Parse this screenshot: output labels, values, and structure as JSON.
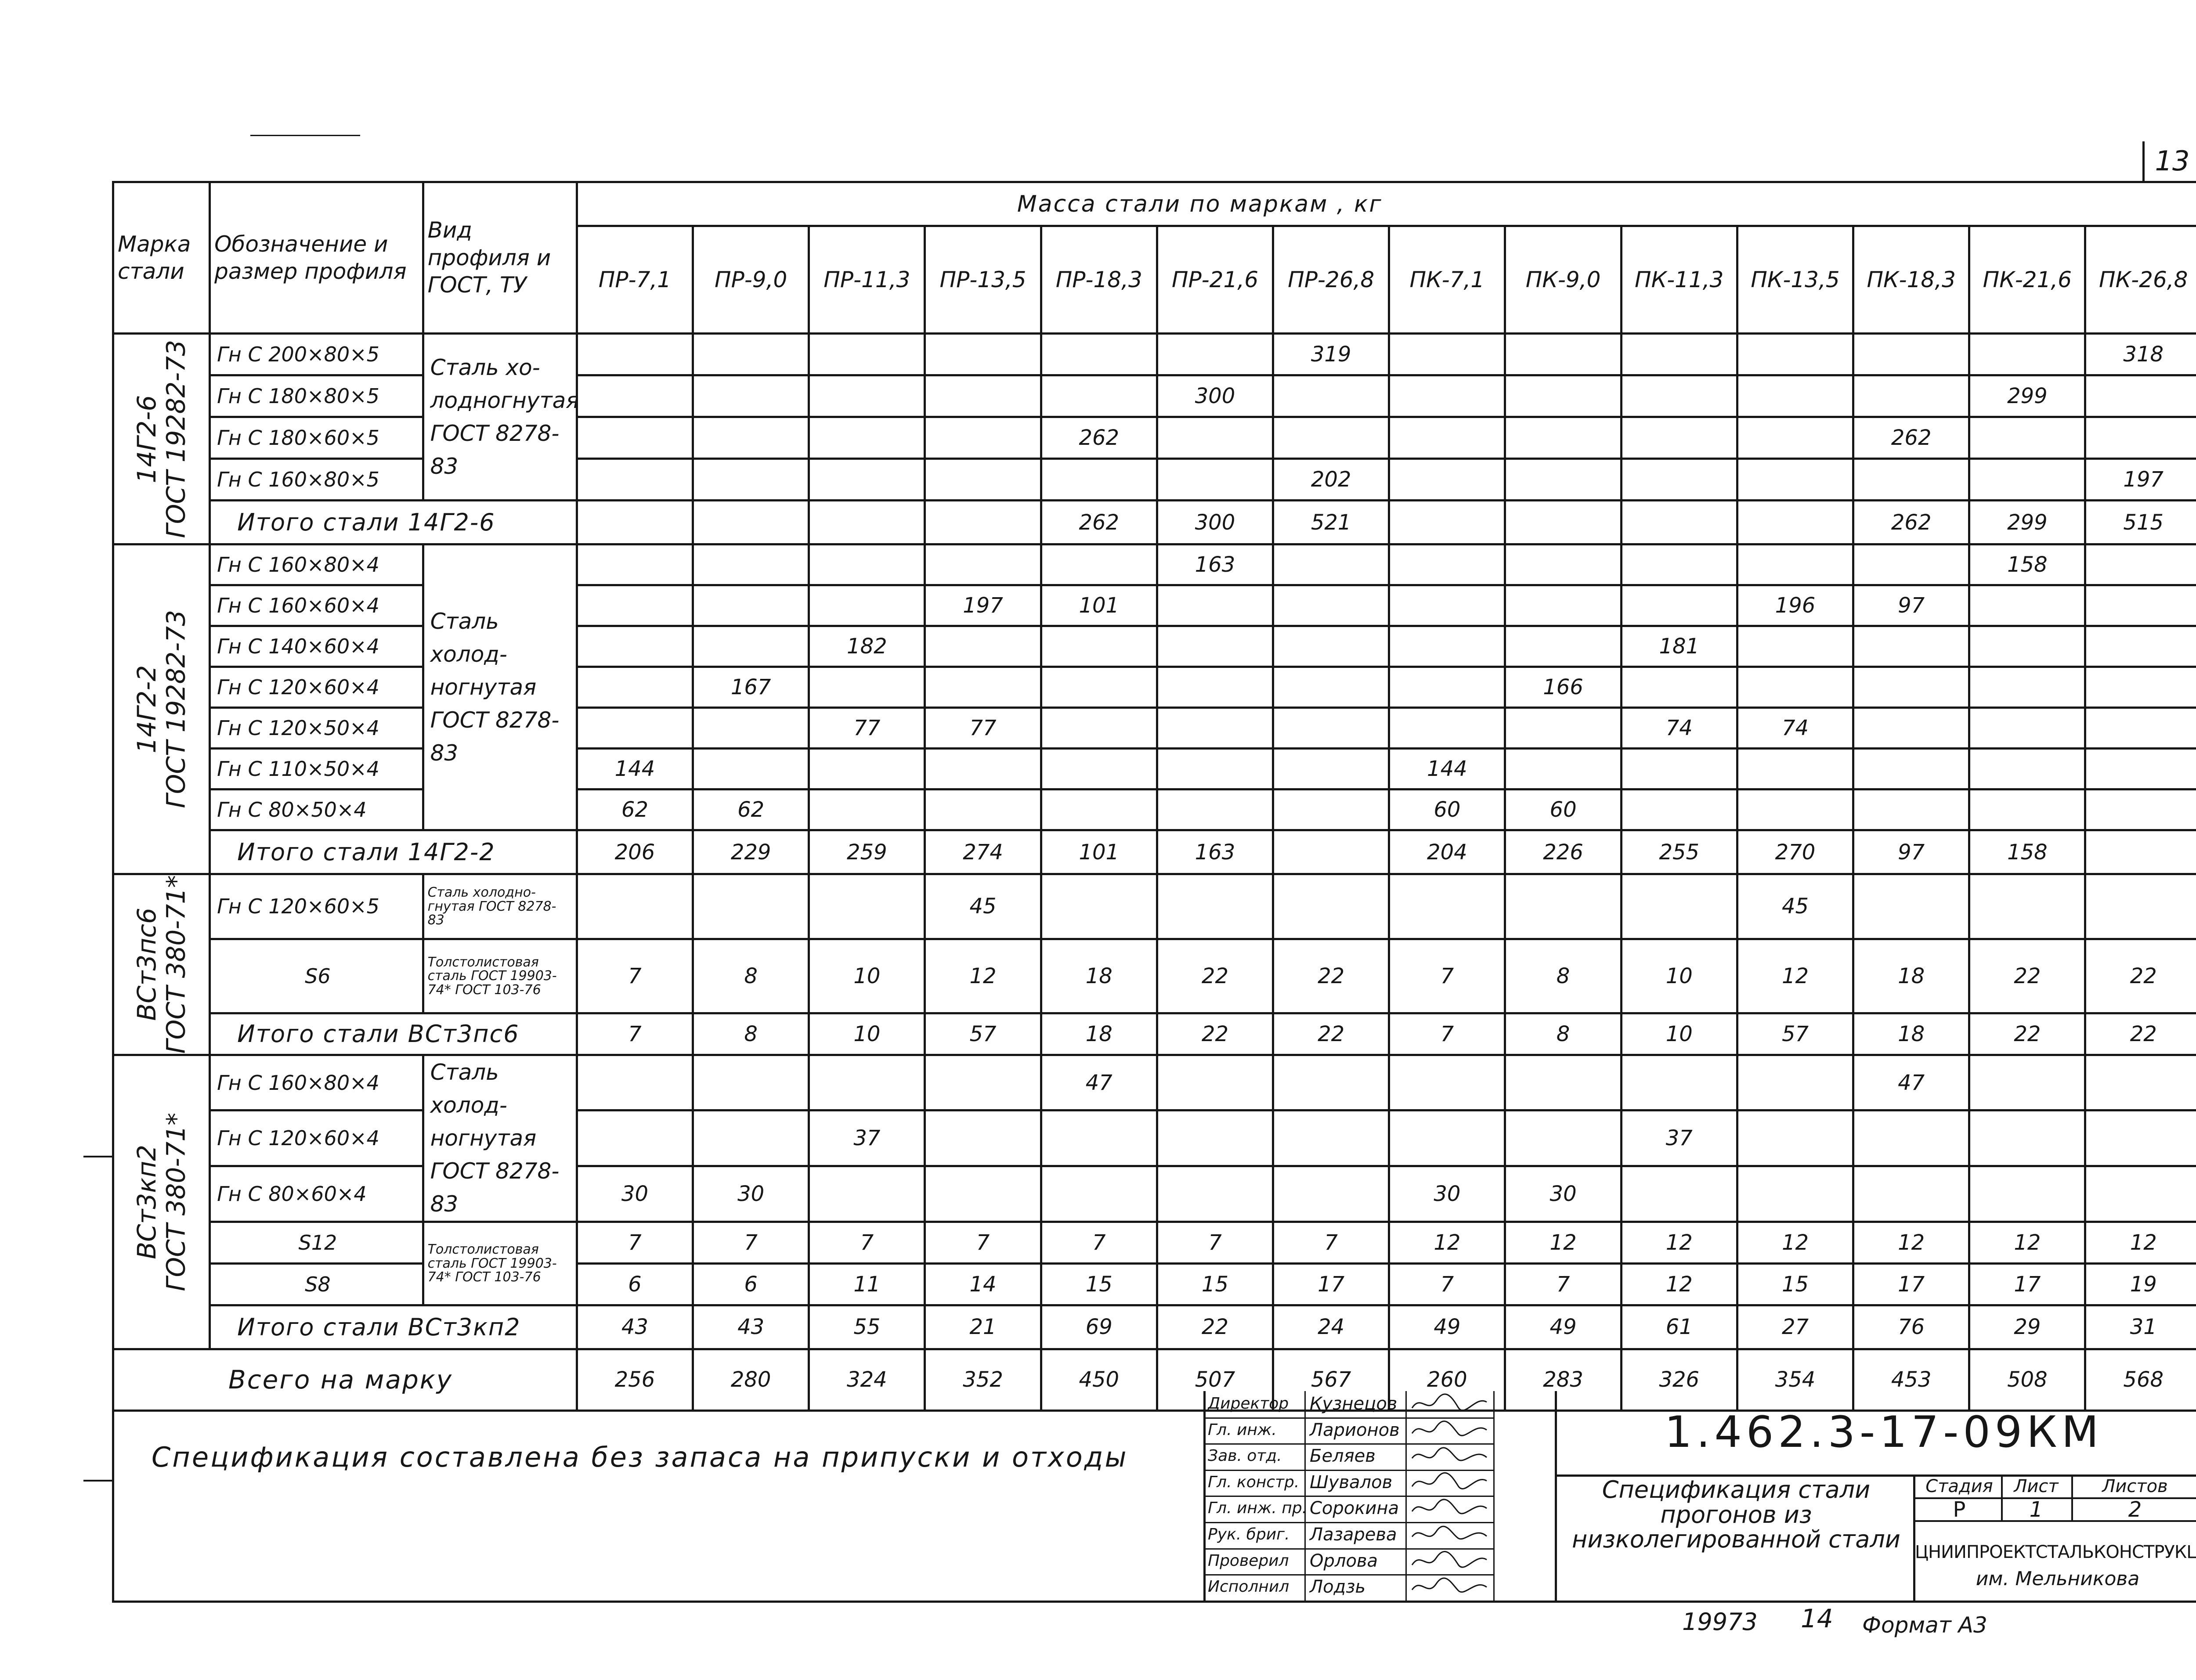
{
  "sheet_number": "13",
  "header": {
    "steel_grade": "Марка стали",
    "profile": "Обозначение и размер профиля",
    "type_gost": "Вид профиля и ГОСТ, ТУ",
    "mass_title": "Масса   стали   по  маркам  , кг",
    "marks": [
      "ПР-7,1",
      "ПР-9,0",
      "ПР-11,3",
      "ПР-13,5",
      "ПР-18,3",
      "ПР-21,6",
      "ПР-26,8",
      "ПК-7,1",
      "ПК-9,0",
      "ПК-11,3",
      "ПК-13,5",
      "ПК-18,3",
      "ПК-21,6",
      "ПК-26,8"
    ]
  },
  "groups": [
    {
      "grade": "14Г2-6",
      "grade_gost": "ГОСТ 19282-73",
      "gost": "Сталь хо- лодногнутая ГОСТ 8278-83",
      "rows": [
        {
          "profile": "Гн С 200×80×5",
          "values": [
            "",
            "",
            "",
            "",
            "",
            "",
            "319",
            "",
            "",
            "",
            "",
            "",
            "",
            "318"
          ]
        },
        {
          "profile": "Гн С 180×80×5",
          "values": [
            "",
            "",
            "",
            "",
            "",
            "300",
            "",
            "",
            "",
            "",
            "",
            "",
            "299",
            ""
          ]
        },
        {
          "profile": "Гн С 180×60×5",
          "values": [
            "",
            "",
            "",
            "",
            "262",
            "",
            "",
            "",
            "",
            "",
            "",
            "262",
            "",
            ""
          ]
        },
        {
          "profile": "Гн С 160×80×5",
          "values": [
            "",
            "",
            "",
            "",
            "",
            "",
            "202",
            "",
            "",
            "",
            "",
            "",
            "",
            "197"
          ]
        }
      ],
      "total_label": "Итого стали 14Г2-6",
      "totals": [
        "",
        "",
        "",
        "",
        "262",
        "300",
        "521",
        "",
        "",
        "",
        "",
        "262",
        "299",
        "515"
      ]
    },
    {
      "grade": "14Г2-2",
      "grade_gost": "ГОСТ 19282-73",
      "gost": "Сталь холод- ногнутая ГОСТ 8278-83",
      "rows": [
        {
          "profile": "Гн С 160×80×4",
          "values": [
            "",
            "",
            "",
            "",
            "",
            "163",
            "",
            "",
            "",
            "",
            "",
            "",
            "158",
            ""
          ]
        },
        {
          "profile": "Гн С 160×60×4",
          "values": [
            "",
            "",
            "",
            "197",
            "101",
            "",
            "",
            "",
            "",
            "",
            "196",
            "97",
            "",
            ""
          ]
        },
        {
          "profile": "Гн С 140×60×4",
          "values": [
            "",
            "",
            "182",
            "",
            "",
            "",
            "",
            "",
            "",
            "181",
            "",
            "",
            "",
            ""
          ]
        },
        {
          "profile": "Гн С 120×60×4",
          "values": [
            "",
            "167",
            "",
            "",
            "",
            "",
            "",
            "",
            "166",
            "",
            "",
            "",
            "",
            ""
          ]
        },
        {
          "profile": "Гн С 120×50×4",
          "values": [
            "",
            "",
            "77",
            "77",
            "",
            "",
            "",
            "",
            "",
            "74",
            "74",
            "",
            "",
            ""
          ]
        },
        {
          "profile": "Гн С 110×50×4",
          "values": [
            "144",
            "",
            "",
            "",
            "",
            "",
            "",
            "144",
            "",
            "",
            "",
            "",
            "",
            ""
          ]
        },
        {
          "profile": "Гн С 80×50×4",
          "values": [
            "62",
            "62",
            "",
            "",
            "",
            "",
            "",
            "60",
            "60",
            "",
            "",
            "",
            "",
            ""
          ]
        }
      ],
      "total_label": "Итого стали 14Г2-2",
      "totals": [
        "206",
        "229",
        "259",
        "274",
        "101",
        "163",
        "",
        "204",
        "226",
        "255",
        "270",
        "97",
        "158",
        ""
      ]
    },
    {
      "grade": "ВСт3пс6",
      "grade_gost": "ГОСТ 380-71*",
      "rows": [
        {
          "profile": "Гн С 120×60×5",
          "gost": "Сталь холодно- гнутая ГОСТ 8278-83",
          "values": [
            "",
            "",
            "",
            "45",
            "",
            "",
            "",
            "",
            "",
            "",
            "45",
            "",
            "",
            ""
          ]
        },
        {
          "profile": "S6",
          "gost": "Толстолистовая сталь ГОСТ 19903-74* ГОСТ 103-76",
          "values": [
            "7",
            "8",
            "10",
            "12",
            "18",
            "22",
            "22",
            "7",
            "8",
            "10",
            "12",
            "18",
            "22",
            "22"
          ]
        }
      ],
      "total_label": "Итого стали ВСт3пс6",
      "totals": [
        "7",
        "8",
        "10",
        "57",
        "18",
        "22",
        "22",
        "7",
        "8",
        "10",
        "57",
        "18",
        "22",
        "22"
      ]
    },
    {
      "grade": "ВСт3кп2",
      "grade_gost": "ГОСТ 380-71*",
      "gost_cold": "Сталь холод- ногнутая ГОСТ 8278-83",
      "gost_plate": "Толстолистовая сталь ГОСТ 19903-74* ГОСТ 103-76",
      "rows": [
        {
          "profile": "Гн С 160×80×4",
          "values": [
            "",
            "",
            "",
            "",
            "47",
            "",
            "",
            "",
            "",
            "",
            "",
            "47",
            "",
            ""
          ]
        },
        {
          "profile": "Гн С 120×60×4",
          "values": [
            "",
            "",
            "37",
            "",
            "",
            "",
            "",
            "",
            "",
            "37",
            "",
            "",
            "",
            ""
          ]
        },
        {
          "profile": "Гн С 80×60×4",
          "values": [
            "30",
            "30",
            "",
            "",
            "",
            "",
            "",
            "30",
            "30",
            "",
            "",
            "",
            "",
            ""
          ]
        },
        {
          "profile": "S12",
          "values": [
            "7",
            "7",
            "7",
            "7",
            "7",
            "7",
            "7",
            "12",
            "12",
            "12",
            "12",
            "12",
            "12",
            "12"
          ]
        },
        {
          "profile": "S8",
          "values": [
            "6",
            "6",
            "11",
            "14",
            "15",
            "15",
            "17",
            "7",
            "7",
            "12",
            "15",
            "17",
            "17",
            "19"
          ]
        }
      ],
      "total_label": "Итого стали ВСт3кп2",
      "totals": [
        "43",
        "43",
        "55",
        "21",
        "69",
        "22",
        "24",
        "49",
        "49",
        "61",
        "27",
        "76",
        "29",
        "31"
      ]
    }
  ],
  "grand_total_label": "Всего на марку",
  "grand_total": [
    "256",
    "280",
    "324",
    "352",
    "450",
    "507",
    "567",
    "260",
    "283",
    "326",
    "354",
    "453",
    "508",
    "568"
  ],
  "note": "Спецификация   составлена   без  запаса  на  припуски  и  отходы",
  "signatures": [
    {
      "role": "Директор",
      "name": "Кузнецов"
    },
    {
      "role": "Гл. инж.",
      "name": "Ларионов"
    },
    {
      "role": "Зав. отд.",
      "name": "Беляев"
    },
    {
      "role": "Гл. констр.",
      "name": "Шувалов"
    },
    {
      "role": "Гл. инж. пр.",
      "name": "Сорокина"
    },
    {
      "role": "Рук. бриг.",
      "name": "Лазарева"
    },
    {
      "role": "Проверил",
      "name": "Орлова"
    },
    {
      "role": "Исполнил",
      "name": "Лодзь"
    }
  ],
  "doc_code": "1.462.3-17-09КМ",
  "doc_title": "Спецификация стали прогонов из низколегированной стали",
  "stage_label": "Стадия",
  "sheet_label": "Лист",
  "sheets_label": "Листов",
  "stage": "Р",
  "sheet": "1",
  "sheets": "2",
  "org": "ЦНИИПРОЕКТСТАЛЬКОНСТРУКЦИЯ",
  "org_sub": "им. Мельникова",
  "bottom_number": "19973",
  "bottom_sheet": "14",
  "format": "Формат А3"
}
